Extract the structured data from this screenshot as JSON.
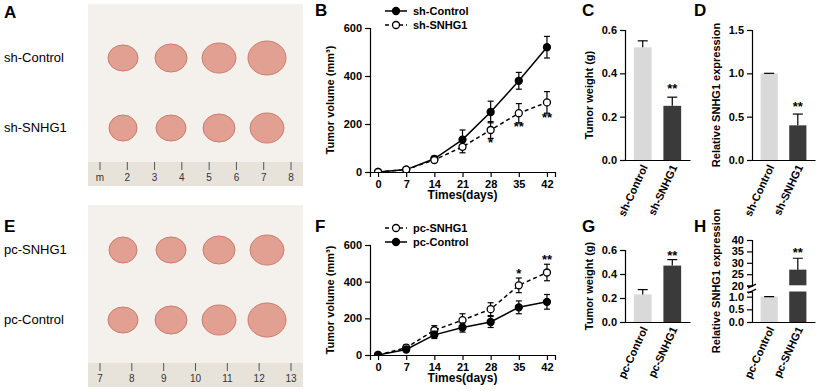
{
  "images": [
    {
      "panel_label": "A",
      "rows": [
        "sh-Control",
        "sh-SNHG1"
      ],
      "ruler_labels": [
        "m",
        "2",
        "3",
        "4",
        "5",
        "6",
        "7",
        "8"
      ]
    },
    {
      "panel_label": "E",
      "rows": [
        "pc-SNHG1",
        "pc-Control"
      ],
      "ruler_labels": [
        "7",
        "8",
        "9",
        "10",
        "11",
        "12",
        "13"
      ]
    }
  ],
  "chart_data": [
    {
      "panel_label": "B",
      "type": "line",
      "x": [
        0,
        7,
        14,
        21,
        28,
        35,
        42
      ],
      "xlim": [
        -2,
        44
      ],
      "xticks": [
        0,
        7,
        14,
        21,
        28,
        35,
        42
      ],
      "ylim": [
        0,
        600
      ],
      "yticks": [
        0,
        200,
        400,
        600
      ],
      "x_label": "Times(days)",
      "y_label": "Tumor volume (mm³)",
      "legend": "upper-left",
      "series": [
        {
          "name": "sh-Control",
          "color": "#000000",
          "marker": "filled-circle",
          "line_style": "solid",
          "values": [
            0,
            10,
            55,
            135,
            250,
            380,
            520
          ],
          "errors": [
            0,
            5,
            10,
            40,
            45,
            35,
            45
          ]
        },
        {
          "name": "sh-SNHG1",
          "color": "#000000",
          "marker": "open-circle",
          "line_style": "dashed",
          "values": [
            0,
            10,
            50,
            105,
            175,
            245,
            290
          ],
          "errors": [
            0,
            5,
            10,
            25,
            35,
            40,
            45
          ]
        }
      ],
      "annotations": [
        {
          "x": 28,
          "y": 125,
          "text": "*"
        },
        {
          "x": 35,
          "y": 190,
          "text": "**"
        },
        {
          "x": 42,
          "y": 228,
          "text": "**"
        }
      ]
    },
    {
      "panel_label": "C",
      "type": "bar",
      "categories": [
        "sh-Control",
        "sh-SNHG1"
      ],
      "values": [
        0.52,
        0.25
      ],
      "errors": [
        0.03,
        0.04
      ],
      "colors": [
        "#d9d9d9",
        "#3a3a3a"
      ],
      "ylim": [
        0,
        0.6
      ],
      "yticks": [
        {
          "value": 0,
          "label": "0.0"
        },
        0.2,
        0.4,
        0.6
      ],
      "y_label": "Tumor weight (g)",
      "annotations": [
        {
          "x": 1,
          "y": 0.33,
          "text": "**"
        }
      ]
    },
    {
      "panel_label": "D",
      "type": "bar",
      "categories": [
        "sh-Control",
        "sh-SNHG1"
      ],
      "values": [
        1,
        0.4
      ],
      "errors": [
        0,
        0.13
      ],
      "colors": [
        "#d9d9d9",
        "#3a3a3a"
      ],
      "ylim": [
        0,
        1.5
      ],
      "yticks": [
        {
          "value": 0,
          "label": "0.0"
        },
        0.5,
        {
          "value": 1,
          "label": "1.0"
        },
        1.5
      ],
      "y_label": "Relative SNHG1 expression",
      "annotations": [
        {
          "x": 1,
          "y": 0.62,
          "text": "**"
        }
      ]
    },
    {
      "panel_label": "F",
      "type": "line",
      "x": [
        0,
        7,
        14,
        21,
        28,
        35,
        42
      ],
      "xlim": [
        -2,
        44
      ],
      "xticks": [
        0,
        7,
        14,
        21,
        28,
        35,
        42
      ],
      "ylim": [
        0,
        600
      ],
      "yticks": [
        0,
        200,
        400,
        600
      ],
      "x_label": "Times(days)",
      "y_label": "Tumor volume (mm³)",
      "legend": "upper-left",
      "series": [
        {
          "name": "pc-SNHG1",
          "color": "#000000",
          "marker": "open-circle",
          "line_style": "dashed",
          "values": [
            0,
            40,
            135,
            190,
            250,
            380,
            450
          ],
          "errors": [
            0,
            15,
            25,
            35,
            35,
            40,
            45
          ]
        },
        {
          "name": "pc-Control",
          "color": "#000000",
          "marker": "filled-circle",
          "line_style": "solid",
          "values": [
            0,
            30,
            110,
            150,
            180,
            260,
            290
          ],
          "errors": [
            0,
            10,
            20,
            25,
            30,
            35,
            40
          ]
        }
      ],
      "annotations": [
        {
          "x": 35,
          "y": 445,
          "text": "*"
        },
        {
          "x": 42,
          "y": 520,
          "text": "**"
        }
      ]
    },
    {
      "panel_label": "G",
      "type": "bar",
      "categories": [
        "pc-Control",
        "pc-SNHG1"
      ],
      "values": [
        0.23,
        0.47
      ],
      "errors": [
        0.04,
        0.05
      ],
      "colors": [
        "#d9d9d9",
        "#3a3a3a"
      ],
      "ylim": [
        0,
        0.6
      ],
      "yticks": [
        {
          "value": 0,
          "label": "0.0"
        },
        0.2,
        0.4,
        0.6
      ],
      "y_label": "Tumor weight (g)",
      "annotations": [
        {
          "x": 1,
          "y": 0.555,
          "text": "**"
        }
      ]
    },
    {
      "panel_label": "H",
      "type": "bar",
      "categories": [
        "pc-Control",
        "pc-SNHG1"
      ],
      "values": [
        1,
        27
      ],
      "errors": [
        0,
        5
      ],
      "colors": [
        "#d9d9d9",
        "#3a3a3a"
      ],
      "ylim": [
        0,
        40
      ],
      "axis_break": [
        1.2,
        20
      ],
      "yticks": [
        {
          "value": 0,
          "label": "0.0"
        },
        0.5,
        {
          "value": 1,
          "label": "1.0"
        },
        20,
        25,
        30,
        35,
        40
      ],
      "y_label": "Relative  SNHG1 expression",
      "annotations": [
        {
          "x": 1,
          "y": 34.5,
          "text": "**"
        }
      ]
    }
  ]
}
